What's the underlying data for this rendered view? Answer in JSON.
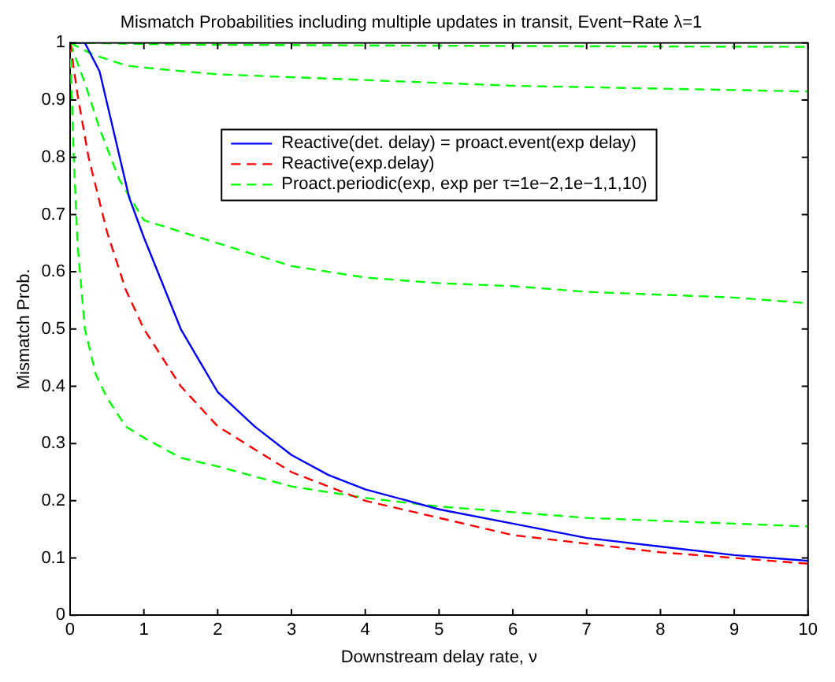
{
  "chart_data": {
    "type": "line",
    "title": "Mismatch Probabilities including multiple updates in transit, Event−Rate λ=1",
    "xlabel": "Downstream delay rate, ν",
    "ylabel": "Mismatch Prob.",
    "xlim": [
      0,
      10
    ],
    "xticks": [
      0,
      1,
      2,
      3,
      4,
      5,
      6,
      7,
      8,
      9,
      10
    ],
    "ylim": [
      0,
      1
    ],
    "yticks": [
      0,
      0.1,
      0.2,
      0.3,
      0.4,
      0.5,
      0.6,
      0.7,
      0.8,
      0.9,
      1
    ],
    "grid": false,
    "legend": "top",
    "marker": "none",
    "series": [
      {
        "name": "Reactive(det. delay) = proact.event(exp delay)",
        "color": "#0000ff",
        "line_style": "solid",
        "x": [
          0,
          0.2,
          0.4,
          0.6,
          0.8,
          1,
          1.5,
          2,
          2.5,
          3,
          3.5,
          4,
          5,
          6,
          7,
          8,
          9,
          10
        ],
        "values": [
          1,
          1,
          0.95,
          0.84,
          0.73,
          0.66,
          0.5,
          0.39,
          0.33,
          0.28,
          0.245,
          0.22,
          0.185,
          0.16,
          0.135,
          0.12,
          0.105,
          0.095
        ]
      },
      {
        "name": "Reactive(exp.delay)",
        "color": "#ff0000",
        "line_style": "dashed",
        "x": [
          0,
          0.1,
          0.25,
          0.5,
          0.75,
          1,
          1.5,
          2,
          2.5,
          3,
          4,
          5,
          6,
          7,
          8,
          9,
          10
        ],
        "values": [
          1,
          0.91,
          0.8,
          0.67,
          0.57,
          0.5,
          0.4,
          0.33,
          0.29,
          0.25,
          0.2,
          0.17,
          0.14,
          0.125,
          0.11,
          0.1,
          0.09
        ]
      },
      {
        "name": "Proact.periodic(exp, exp per τ=1e−2,1e−1,1,10)",
        "color": "#00ff00",
        "line_style": "dashed",
        "x": [
          0,
          0.5,
          1.5,
          3,
          5,
          7,
          10
        ],
        "values": [
          1,
          0.999,
          0.997,
          0.996,
          0.995,
          0.994,
          0.993
        ]
      },
      {
        "color": "#00ff00",
        "line_style": "dashed",
        "x": [
          0,
          0.3,
          0.77,
          1.3,
          2,
          3,
          4,
          6,
          8,
          10
        ],
        "values": [
          1,
          0.98,
          0.96,
          0.953,
          0.945,
          0.94,
          0.935,
          0.925,
          0.92,
          0.915
        ]
      },
      {
        "color": "#00ff00",
        "line_style": "dashed",
        "x": [
          0,
          0.2,
          0.4,
          0.67,
          1,
          1.5,
          2,
          3,
          4,
          5,
          6,
          7,
          8,
          9,
          10
        ],
        "values": [
          1,
          0.93,
          0.85,
          0.76,
          0.69,
          0.67,
          0.65,
          0.61,
          0.59,
          0.58,
          0.575,
          0.565,
          0.56,
          0.555,
          0.545
        ]
      },
      {
        "color": "#00ff00",
        "line_style": "dashed",
        "x": [
          0,
          0.05,
          0.1,
          0.2,
          0.35,
          0.5,
          0.75,
          1,
          1.5,
          2,
          3,
          4,
          5,
          6,
          7,
          8,
          9,
          10
        ],
        "values": [
          1,
          0.8,
          0.65,
          0.5,
          0.42,
          0.38,
          0.33,
          0.31,
          0.275,
          0.26,
          0.225,
          0.205,
          0.19,
          0.18,
          0.17,
          0.165,
          0.16,
          0.155
        ]
      }
    ]
  }
}
